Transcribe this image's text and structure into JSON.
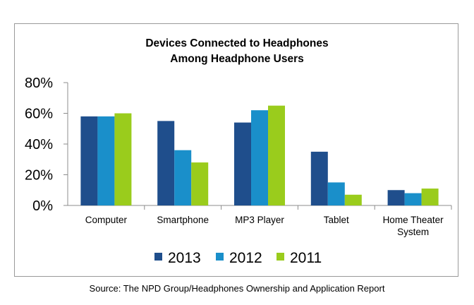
{
  "chart_data": {
    "type": "bar",
    "title": [
      "Devices Connected to Headphones",
      "Among Headphone Users"
    ],
    "categories": [
      "Computer",
      "Smartphone",
      "MP3 Player",
      "Tablet",
      "Home Theater System"
    ],
    "category_lines": [
      [
        "Computer"
      ],
      [
        "Smartphone"
      ],
      [
        "MP3 Player"
      ],
      [
        "Tablet"
      ],
      [
        "Home Theater",
        "System"
      ]
    ],
    "series": [
      {
        "name": "2013",
        "color": "#1f4e8c",
        "values": [
          58,
          55,
          54,
          35,
          10
        ]
      },
      {
        "name": "2012",
        "color": "#1a8fca",
        "values": [
          58,
          36,
          62,
          15,
          8
        ]
      },
      {
        "name": "2011",
        "color": "#9acc1c",
        "values": [
          60,
          28,
          65,
          7,
          11
        ]
      }
    ],
    "ylim": [
      0,
      80
    ],
    "yticks": [
      0,
      20,
      40,
      60,
      80
    ],
    "ytick_labels": [
      "0%",
      "20%",
      "40%",
      "60%",
      "80%"
    ],
    "xlabel": "",
    "ylabel": "",
    "legend_position": "bottom",
    "grid": false
  },
  "source": "Source: The NPD Group/Headphones Ownership and Application Report"
}
